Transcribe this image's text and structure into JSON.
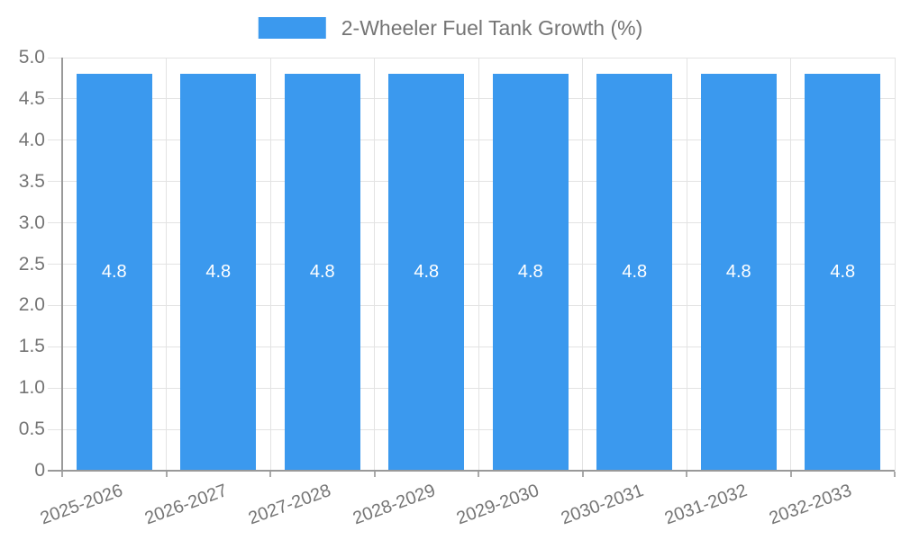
{
  "legend": {
    "label": "2-Wheeler Fuel Tank Growth (%)"
  },
  "colors": {
    "bar": "#3B99EE",
    "bar_label_text": "#FFFFFF",
    "axis_line": "#999999",
    "grid_line": "#E3E3E3",
    "tick_mark": "#AAAAAA",
    "axis_label_text": "#757575",
    "legend_text": "#757575",
    "background": "#FFFFFF"
  },
  "chart_data": {
    "type": "bar",
    "title": "2-Wheeler Fuel Tank Growth (%)",
    "categories": [
      "2025-2026",
      "2026-2027",
      "2027-2028",
      "2028-2029",
      "2029-2030",
      "2030-2031",
      "2031-2032",
      "2032-2033"
    ],
    "values": [
      4.8,
      4.8,
      4.8,
      4.8,
      4.8,
      4.8,
      4.8,
      4.8
    ],
    "bar_value_labels": [
      "4.8",
      "4.8",
      "4.8",
      "4.8",
      "4.8",
      "4.8",
      "4.8",
      "4.8"
    ],
    "xlabel": "",
    "ylabel": "",
    "ylim": [
      0,
      5
    ],
    "ytick_labels": [
      "5.0",
      "4.5",
      "4.0",
      "3.5",
      "3.0",
      "2.5",
      "2.0",
      "1.5",
      "1.0",
      "0.5",
      "0"
    ],
    "grid": true,
    "legend_position": "top-center",
    "x_label_rotation_deg": -20
  }
}
